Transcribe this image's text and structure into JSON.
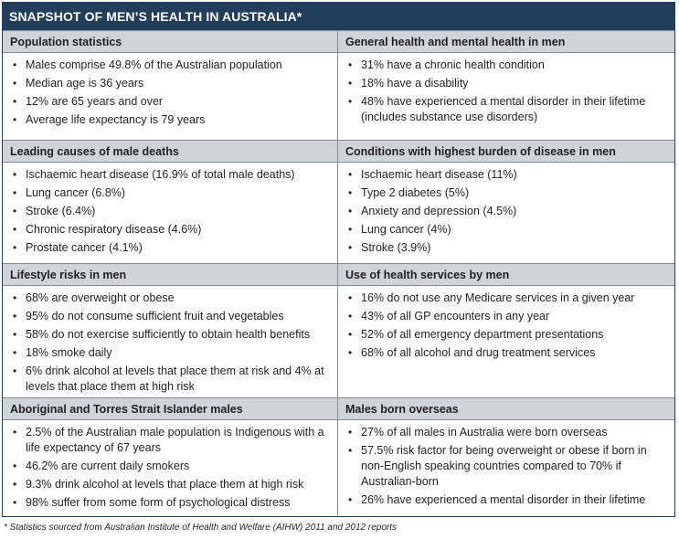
{
  "title": "SNAPSHOT OF MEN’S HEALTH IN AUSTRALIA*",
  "sections": {
    "population": {
      "heading": "Population statistics",
      "items": [
        "Males comprise 49.8% of the Australian population",
        "Median age is 36 years",
        "12% are 65 years and over",
        "Average life expectancy is 79 years"
      ]
    },
    "general_health": {
      "heading": "General health and mental health in men",
      "items": [
        "31% have a chronic health condition",
        "18% have a disability",
        "48% have experienced a mental disorder in their lifetime (includes substance use disorders)"
      ]
    },
    "causes_of_death": {
      "heading": "Leading causes of male deaths",
      "items": [
        "Ischaemic heart disease (16.9% of total male deaths)",
        "Lung cancer (6.8%)",
        "Stroke (6.4%)",
        "Chronic respiratory disease (4.6%)",
        "Prostate cancer (4.1%)"
      ]
    },
    "burden_of_disease": {
      "heading": "Conditions with highest burden of disease in men",
      "items": [
        "Ischaemic heart disease (11%)",
        "Type 2 diabetes (5%)",
        "Anxiety and depression (4.5%)",
        "Lung cancer (4%)",
        "Stroke (3.9%)"
      ]
    },
    "lifestyle": {
      "heading": "Lifestyle risks in men",
      "items": [
        "68% are overweight or obese",
        "95% do not consume sufficient fruit and vegetables",
        "58% do not exercise sufficiently to obtain health benefits",
        "18% smoke daily",
        "6% drink alcohol at levels that place them at risk and 4% at levels that place them at high risk"
      ]
    },
    "health_services": {
      "heading": "Use of health services by men",
      "items": [
        "16% do not use any Medicare services in a given year",
        "43% of all GP encounters in any year",
        "52% of all emergency department presentations",
        "68% of all alcohol and drug treatment services"
      ]
    },
    "aboriginal": {
      "heading": "Aboriginal and Torres Strait Islander males",
      "items": [
        "2.5% of the Australian male population is Indigenous with a life expectancy of 67 years",
        "46.2% are current daily smokers",
        "9.3% drink alcohol at levels that place them at high risk",
        "98% suffer from some form of psychological distress"
      ]
    },
    "born_overseas": {
      "heading": "Males born overseas",
      "items": [
        "27% of all males in Australia were born overseas",
        "57.5% risk factor for being overweight or obese if born in non-English speaking countries compared to 70% if Australian-born",
        "26% have experienced a mental disorder in their lifetime"
      ]
    }
  },
  "footnote": "* Statistics sourced from Australian Institute of Health and Welfare (AIHW) 2011 and 2012 reports",
  "colors": {
    "title_bg": "#233e5b",
    "heading_bg": "#cfd4d9",
    "border": "#7e8a96"
  },
  "bullet_glyph": "•"
}
